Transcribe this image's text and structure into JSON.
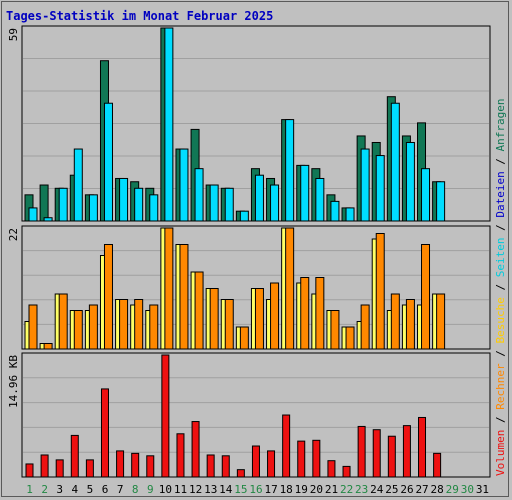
{
  "title": "Tages-Statistik im Monat Februar 2025",
  "colors": {
    "title": "#0000c0",
    "background": "#c0c0c0",
    "grid": "#a0a0a0",
    "axis": "#000000",
    "anfragen": "#117755",
    "dateien": "#00ddff",
    "seiten": "#ffff66",
    "besuche": "#ff8800",
    "rechner": "#ff8800",
    "volumen": "#ee1111",
    "weekday": "#000000",
    "weekend": "#228844"
  },
  "right_legend": [
    {
      "text": "Volumen",
      "color": "#ee1111"
    },
    {
      "text": " / ",
      "color": "#000000"
    },
    {
      "text": "Rechner",
      "color": "#ff8800"
    },
    {
      "text": " / ",
      "color": "#000000"
    },
    {
      "text": "Besuche",
      "color": "#ffcc00"
    },
    {
      "text": " / ",
      "color": "#000000"
    },
    {
      "text": "Seiten",
      "color": "#00ccdd"
    },
    {
      "text": " / ",
      "color": "#000000"
    },
    {
      "text": "Dateien",
      "color": "#0000cc"
    },
    {
      "text": " / ",
      "color": "#000000"
    },
    {
      "text": "Anfragen",
      "color": "#117755"
    }
  ],
  "chart_data": [
    {
      "type": "bar",
      "name": "Anfragen / Dateien",
      "y_max_label": "59",
      "ylim": [
        0,
        59
      ],
      "categories": [
        "1",
        "2",
        "3",
        "4",
        "5",
        "6",
        "7",
        "8",
        "9",
        "10",
        "11",
        "12",
        "13",
        "14",
        "15",
        "16",
        "17",
        "18",
        "19",
        "20",
        "21",
        "22",
        "23",
        "24",
        "25",
        "26",
        "27",
        "28",
        "29",
        "30",
        "31"
      ],
      "series": [
        {
          "name": "Anfragen",
          "values": [
            8,
            11,
            10,
            14,
            8,
            49,
            13,
            12,
            10,
            59,
            22,
            28,
            11,
            10,
            3,
            16,
            13,
            31,
            17,
            16,
            8,
            4,
            26,
            24,
            38,
            26,
            30,
            12,
            null,
            null,
            null
          ]
        },
        {
          "name": "Dateien",
          "values": [
            4,
            1,
            10,
            22,
            8,
            36,
            13,
            10,
            8,
            59,
            22,
            16,
            11,
            10,
            3,
            14,
            11,
            31,
            17,
            13,
            6,
            4,
            22,
            20,
            36,
            24,
            16,
            12,
            null,
            null,
            null
          ]
        }
      ]
    },
    {
      "type": "bar",
      "name": "Seiten / Besuche",
      "y_max_label": "22",
      "ylim": [
        0,
        22
      ],
      "categories": [
        "1",
        "2",
        "3",
        "4",
        "5",
        "6",
        "7",
        "8",
        "9",
        "10",
        "11",
        "12",
        "13",
        "14",
        "15",
        "16",
        "17",
        "18",
        "19",
        "20",
        "21",
        "22",
        "23",
        "24",
        "25",
        "26",
        "27",
        "28",
        "29",
        "30",
        "31"
      ],
      "series": [
        {
          "name": "Seiten",
          "values": [
            5,
            1,
            10,
            7,
            7,
            17,
            9,
            8,
            7,
            22,
            19,
            14,
            11,
            9,
            4,
            11,
            9,
            22,
            12,
            10,
            7,
            4,
            5,
            20,
            7,
            8,
            8,
            10,
            null,
            null,
            null
          ]
        },
        {
          "name": "Besuche",
          "values": [
            8,
            1,
            10,
            7,
            8,
            19,
            9,
            9,
            8,
            22,
            19,
            14,
            11,
            9,
            4,
            11,
            12,
            22,
            13,
            13,
            7,
            4,
            8,
            21,
            10,
            9,
            19,
            10,
            null,
            null,
            null
          ]
        }
      ]
    },
    {
      "type": "bar",
      "name": "Volumen",
      "y_max_label": "14.96 KB",
      "ylim": [
        0,
        14.96
      ],
      "categories": [
        "1",
        "2",
        "3",
        "4",
        "5",
        "6",
        "7",
        "8",
        "9",
        "10",
        "11",
        "12",
        "13",
        "14",
        "15",
        "16",
        "17",
        "18",
        "19",
        "20",
        "21",
        "22",
        "23",
        "24",
        "25",
        "26",
        "27",
        "28",
        "29",
        "30",
        "31"
      ],
      "series": [
        {
          "name": "Volumen",
          "values": [
            1.6,
            2.7,
            2.1,
            5.1,
            2.1,
            10.8,
            3.2,
            2.9,
            2.6,
            14.96,
            5.3,
            6.8,
            2.7,
            2.6,
            0.9,
            3.8,
            3.2,
            7.6,
            4.4,
            4.5,
            2.0,
            1.3,
            6.2,
            5.8,
            5.0,
            6.3,
            7.3,
            2.9,
            null,
            null,
            null
          ]
        }
      ]
    }
  ],
  "x_axis": {
    "labels": [
      "1",
      "2",
      "3",
      "4",
      "5",
      "6",
      "7",
      "8",
      "9",
      "10",
      "11",
      "12",
      "13",
      "14",
      "15",
      "16",
      "17",
      "18",
      "19",
      "20",
      "21",
      "22",
      "23",
      "24",
      "25",
      "26",
      "27",
      "28",
      "29",
      "30",
      "31"
    ],
    "weekend": [
      true,
      true,
      false,
      false,
      false,
      false,
      false,
      true,
      true,
      false,
      false,
      false,
      false,
      false,
      true,
      true,
      false,
      false,
      false,
      false,
      false,
      true,
      true,
      false,
      false,
      false,
      false,
      false,
      true,
      true,
      false
    ]
  }
}
